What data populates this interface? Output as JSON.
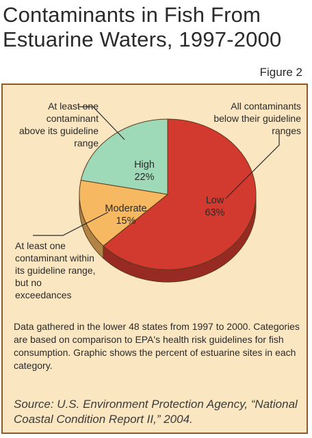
{
  "title": "Contaminants in Fish From Estuarine Waters, 1997-2000",
  "figure_label": "Figure 2",
  "chart_data": {
    "type": "pie",
    "slices": [
      {
        "name": "Low",
        "value": 63,
        "display": "63%",
        "color": "#d23a2f",
        "callout": "All contaminants below their guideline ranges"
      },
      {
        "name": "Moderate",
        "value": 15,
        "display": "15%",
        "color": "#f6b860",
        "callout": "At least one contaminant within its guideline range, but no exceedances"
      },
      {
        "name": "High",
        "value": 22,
        "display": "22%",
        "color": "#9ed9b8",
        "callout": "At least one contaminant above its guideline range"
      }
    ]
  },
  "note": "Data gathered in the lower 48 states from 1997 to 2000. Categories are based on comparison to EPA's health risk guidelines for fish consumption. Graphic shows the percent of estuarine sites in each category.",
  "source": "Source: U.S. Environment Protection Agency, “National Coastal Condition Report II,” 2004."
}
